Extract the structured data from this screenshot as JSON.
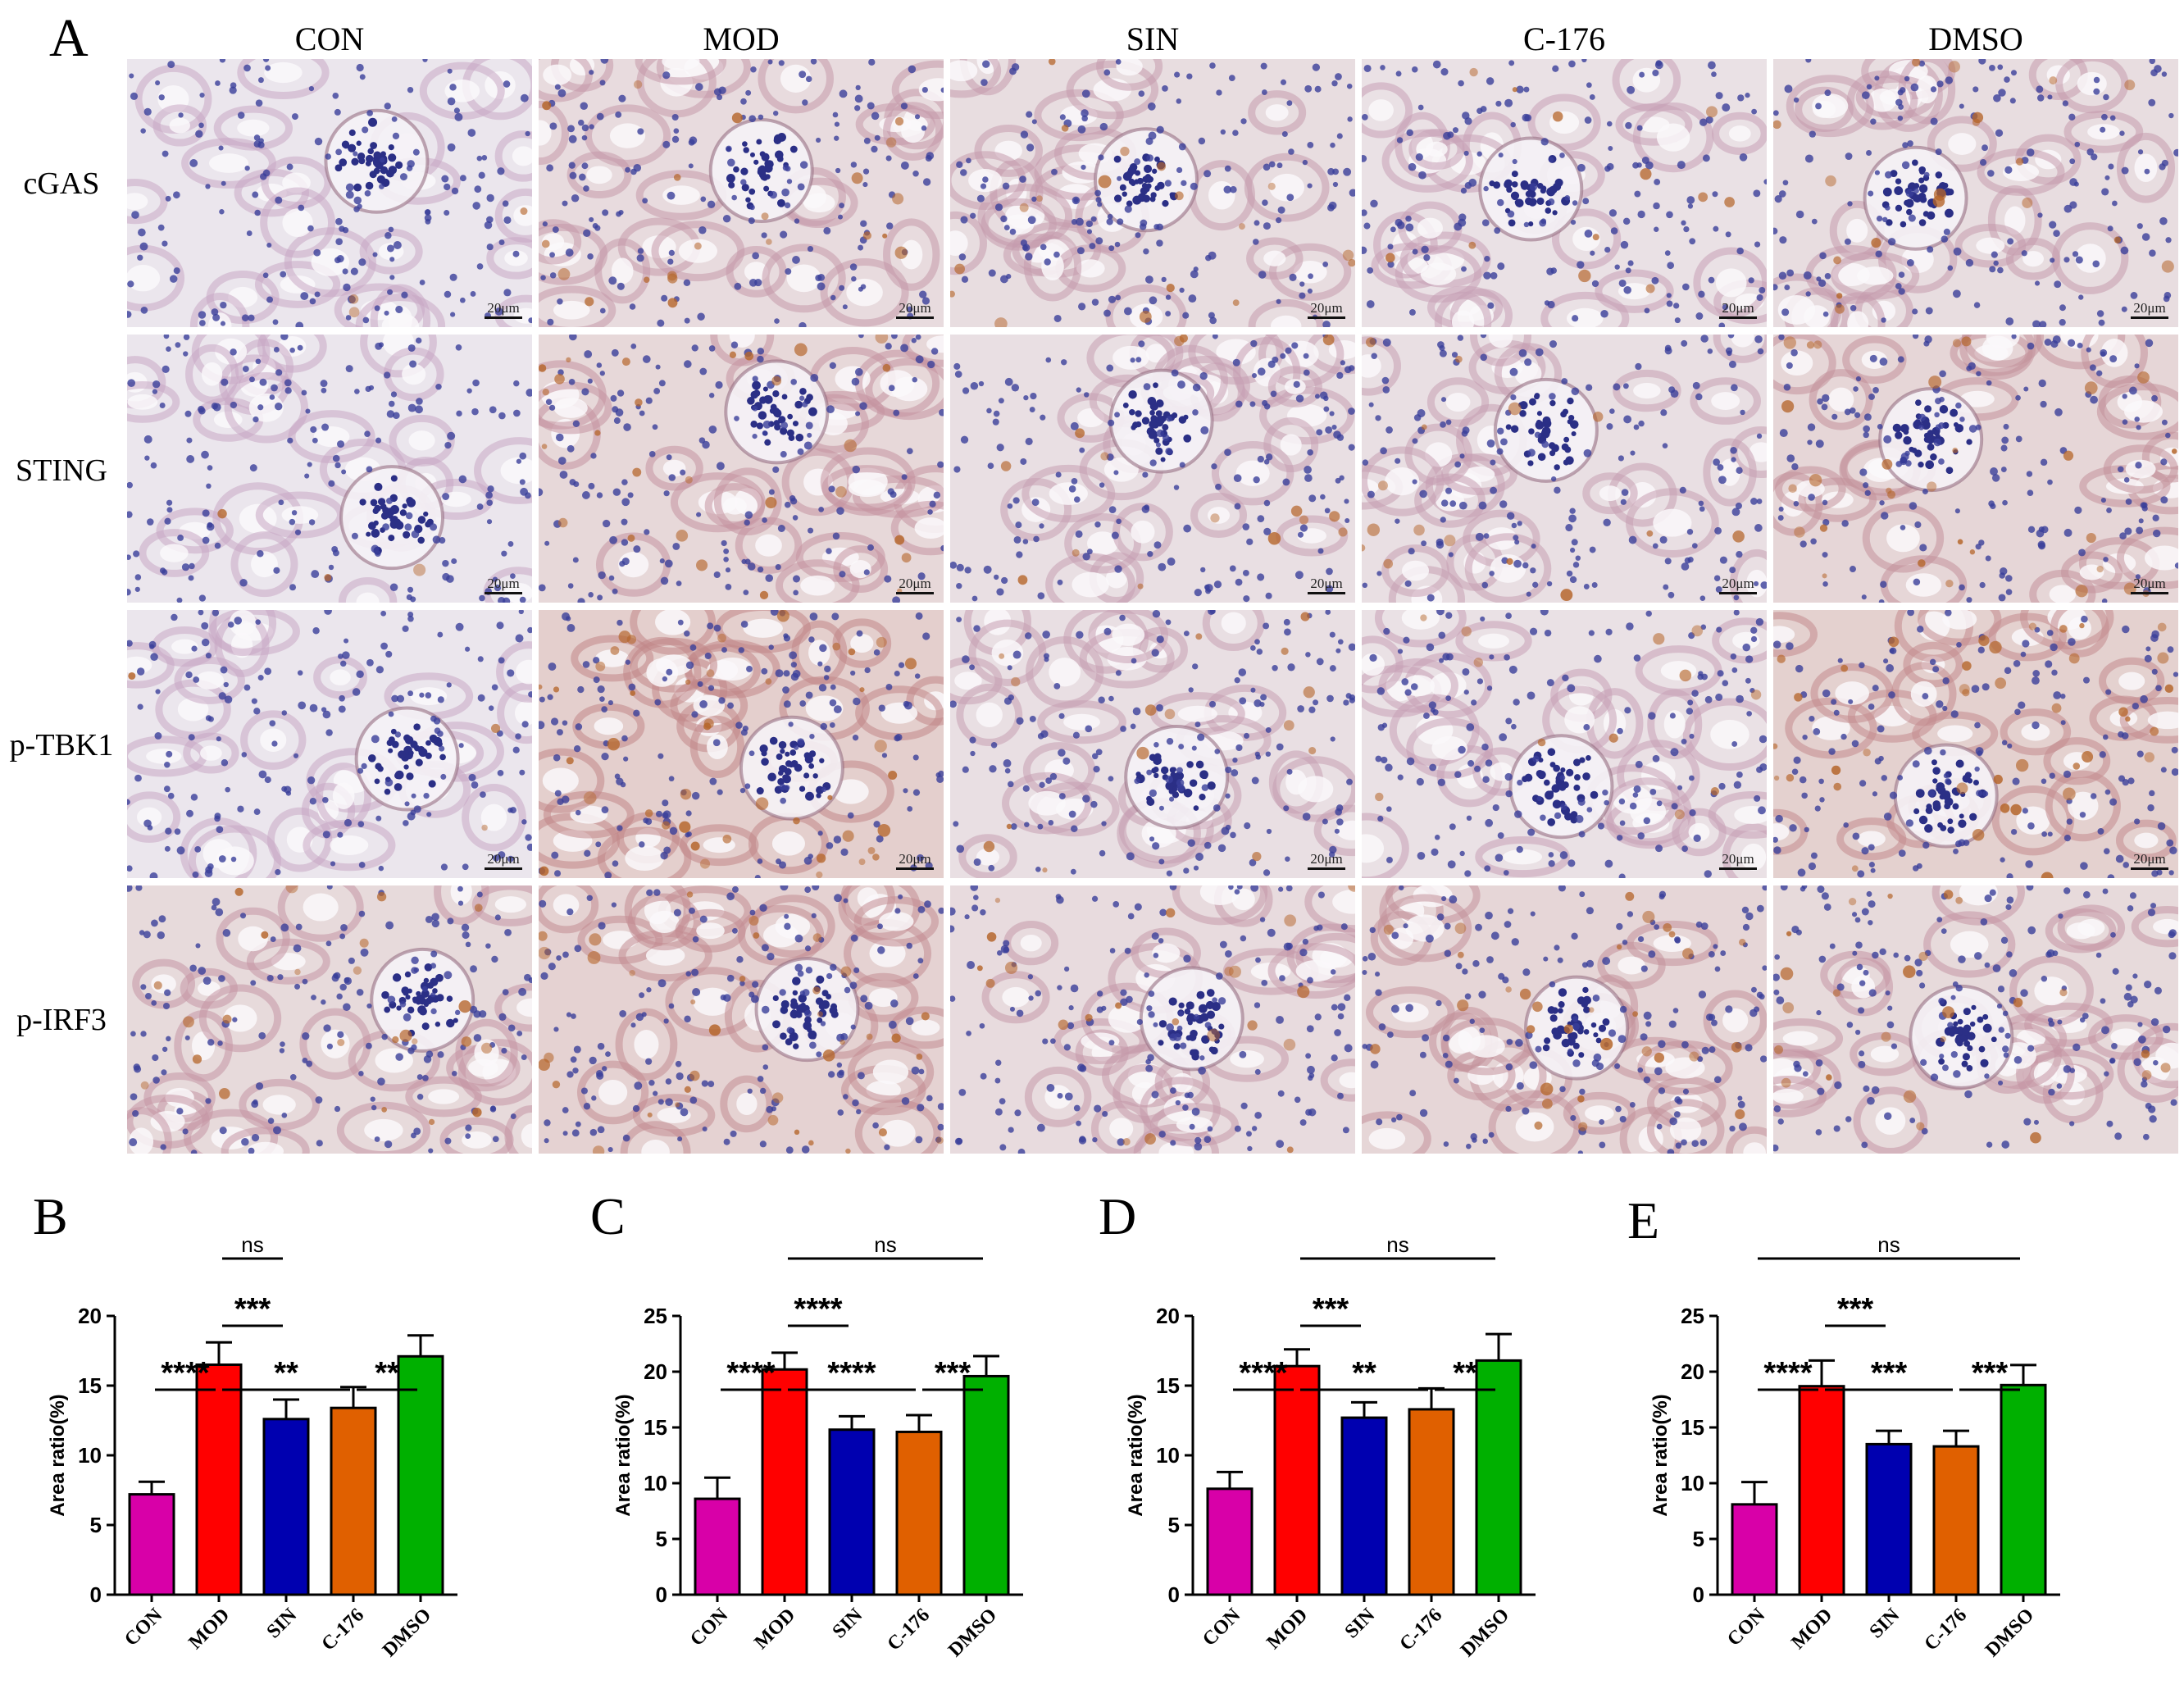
{
  "micrograph": {
    "panel_letter": "A",
    "columns": [
      "CON",
      "MOD",
      "SIN",
      "C-176",
      "DMSO"
    ],
    "rows": [
      "cGAS",
      "STING",
      "p-TBK1",
      "p-IRF3"
    ],
    "scale_bar": "20μm",
    "scale_bar_rows": [
      0,
      1,
      2
    ],
    "staining": [
      [
        0.05,
        0.35,
        0.3,
        0.2,
        0.3
      ],
      [
        0.05,
        0.45,
        0.25,
        0.25,
        0.5
      ],
      [
        0.05,
        0.7,
        0.25,
        0.2,
        0.65
      ],
      [
        0.4,
        0.6,
        0.35,
        0.5,
        0.4
      ]
    ],
    "colors": {
      "hematoxylin": "#3a3f9a",
      "dab": "#b5652a",
      "background": "#ece8ef"
    }
  },
  "chart_data": [
    {
      "panel": "B",
      "type": "bar",
      "ylabel": "Area ratio(%)",
      "ylim": [
        0,
        20
      ],
      "yticks": [
        0,
        5,
        10,
        15,
        20
      ],
      "categories": [
        "CON",
        "MOD",
        "SIN",
        "C-176",
        "DMSO"
      ],
      "values": [
        7.2,
        16.5,
        12.6,
        13.4,
        17.1
      ],
      "errors": [
        0.9,
        1.6,
        1.4,
        1.5,
        1.5
      ],
      "colors": [
        "#d800a8",
        "#ff0000",
        "#0000b0",
        "#e06000",
        "#00b000"
      ],
      "significance": [
        {
          "from": 1,
          "to": 2,
          "label": "ns",
          "level": 4
        },
        {
          "from": 1,
          "to": 2,
          "label": "***",
          "level": 2
        },
        {
          "from": 0,
          "to": 1,
          "label": "****",
          "level": 1
        },
        {
          "from": 1,
          "to": 3,
          "label": "**",
          "level": 1
        },
        {
          "from": 3,
          "to": 4,
          "label": "**",
          "level": 1
        }
      ]
    },
    {
      "panel": "C",
      "type": "bar",
      "ylabel": "Area ratio(%)",
      "ylim": [
        0,
        25
      ],
      "yticks": [
        0,
        5,
        10,
        15,
        20,
        25
      ],
      "categories": [
        "CON",
        "MOD",
        "SIN",
        "C-176",
        "DMSO"
      ],
      "values": [
        8.6,
        20.2,
        14.8,
        14.6,
        19.6
      ],
      "errors": [
        1.9,
        1.5,
        1.2,
        1.5,
        1.8
      ],
      "colors": [
        "#d800a8",
        "#ff0000",
        "#0000b0",
        "#e06000",
        "#00b000"
      ],
      "significance": [
        {
          "from": 1,
          "to": 4,
          "label": "ns",
          "level": 4
        },
        {
          "from": 1,
          "to": 2,
          "label": "****",
          "level": 2
        },
        {
          "from": 0,
          "to": 1,
          "label": "****",
          "level": 1
        },
        {
          "from": 1,
          "to": 3,
          "label": "****",
          "level": 1
        },
        {
          "from": 3,
          "to": 4,
          "label": "***",
          "level": 1
        }
      ]
    },
    {
      "panel": "D",
      "type": "bar",
      "ylabel": "Area ratio(%)",
      "ylim": [
        0,
        20
      ],
      "yticks": [
        0,
        5,
        10,
        15,
        20
      ],
      "categories": [
        "CON",
        "MOD",
        "SIN",
        "C-176",
        "DMSO"
      ],
      "values": [
        7.6,
        16.4,
        12.7,
        13.3,
        16.8
      ],
      "errors": [
        1.2,
        1.2,
        1.1,
        1.5,
        1.9
      ],
      "colors": [
        "#d800a8",
        "#ff0000",
        "#0000b0",
        "#e06000",
        "#00b000"
      ],
      "significance": [
        {
          "from": 1,
          "to": 4,
          "label": "ns",
          "level": 4
        },
        {
          "from": 1,
          "to": 2,
          "label": "***",
          "level": 2
        },
        {
          "from": 0,
          "to": 1,
          "label": "****",
          "level": 1
        },
        {
          "from": 1,
          "to": 3,
          "label": "**",
          "level": 1
        },
        {
          "from": 3,
          "to": 4,
          "label": "**",
          "level": 1
        }
      ]
    },
    {
      "panel": "E",
      "type": "bar",
      "ylabel": "Area ratio(%)",
      "ylim": [
        0,
        25
      ],
      "yticks": [
        0,
        5,
        10,
        15,
        20,
        25
      ],
      "categories": [
        "CON",
        "MOD",
        "SIN",
        "C-176",
        "DMSO"
      ],
      "values": [
        8.1,
        18.7,
        13.5,
        13.3,
        18.8
      ],
      "errors": [
        2.0,
        2.3,
        1.2,
        1.4,
        1.8
      ],
      "colors": [
        "#d800a8",
        "#ff0000",
        "#0000b0",
        "#e06000",
        "#00b000"
      ],
      "significance": [
        {
          "from": 0,
          "to": 4,
          "label": "ns",
          "level": 4
        },
        {
          "from": 1,
          "to": 2,
          "label": "***",
          "level": 2
        },
        {
          "from": 0,
          "to": 1,
          "label": "****",
          "level": 1
        },
        {
          "from": 1,
          "to": 3,
          "label": "***",
          "level": 1
        },
        {
          "from": 3,
          "to": 4,
          "label": "***",
          "level": 1
        }
      ]
    }
  ]
}
